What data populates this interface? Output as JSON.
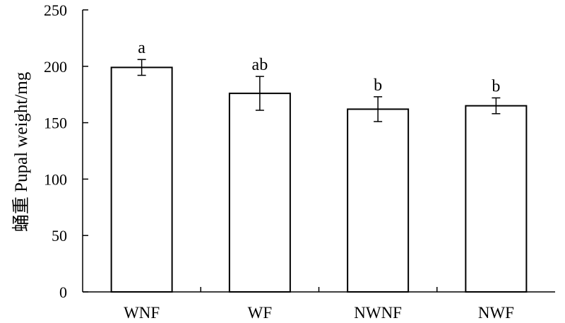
{
  "chart_data": {
    "type": "bar",
    "title": "",
    "xlabel": "",
    "ylabel": "蛹重 Pupal weight/mg",
    "categories": [
      "WNF",
      "WF",
      "NWNF",
      "NWF"
    ],
    "values": [
      199,
      176,
      162,
      165
    ],
    "errors": [
      7,
      15,
      11,
      7
    ],
    "significance": [
      "a",
      "ab",
      "b",
      "b"
    ],
    "ylim": [
      0,
      250
    ],
    "yticks": [
      0,
      50,
      100,
      150,
      200,
      250
    ],
    "grid": false,
    "bar_fill": "#ffffff",
    "bar_stroke": "#000000"
  }
}
